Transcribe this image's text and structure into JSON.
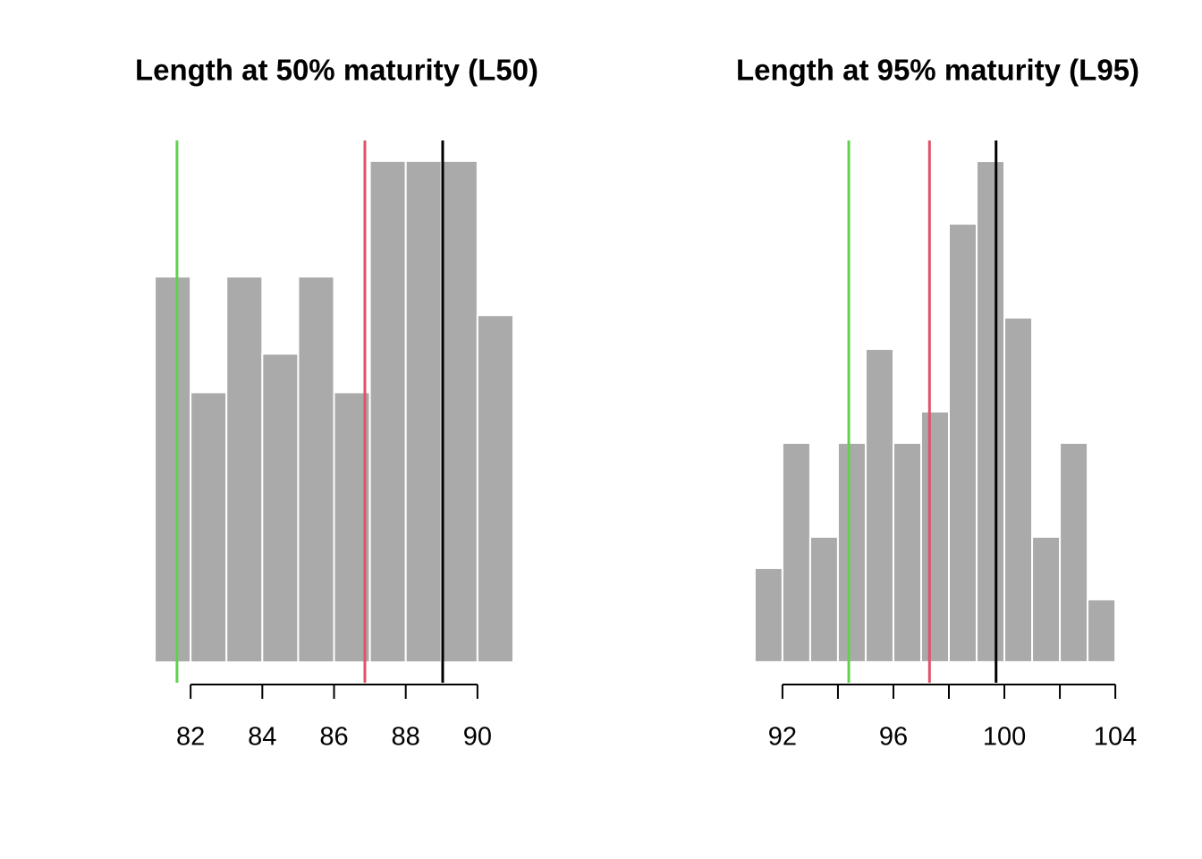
{
  "chart_data": [
    {
      "type": "histogram",
      "title": "Length at 50% maturity (L50)",
      "bins": [
        81,
        82,
        83,
        84,
        85,
        86,
        87,
        88,
        89,
        90,
        91
      ],
      "values": [
        10,
        7,
        10,
        8,
        10,
        7,
        13,
        13,
        13,
        9
      ],
      "color": "#aaaaaa",
      "xlim": [
        80.6,
        91.4
      ],
      "ylim": [
        -0.53,
        13.53
      ],
      "xticks": [
        82,
        84,
        86,
        88,
        90
      ],
      "vlines": [
        {
          "value": 81.62,
          "color": "#61D04F"
        },
        {
          "value": 86.86,
          "color": "#DF536B"
        },
        {
          "value": 89.03,
          "color": "#000000"
        }
      ]
    },
    {
      "type": "histogram",
      "title": "Length at 95% maturity (L95)",
      "bins": [
        91,
        92,
        93,
        94,
        95,
        96,
        97,
        98,
        99,
        100,
        101,
        102,
        103,
        104
      ],
      "values": [
        3,
        7,
        4,
        7,
        10,
        7,
        8,
        14,
        16,
        11,
        4,
        7,
        2
      ],
      "color": "#aaaaaa",
      "xlim": [
        90.52,
        104.48
      ],
      "ylim": [
        -0.66,
        16.66
      ],
      "xticks": [
        92,
        96,
        100,
        104
      ],
      "xticks_unlabeled": [
        94,
        98,
        102
      ],
      "vlines": [
        {
          "value": 94.39,
          "color": "#61D04F"
        },
        {
          "value": 97.3,
          "color": "#DF536B"
        },
        {
          "value": 99.7,
          "color": "#000000"
        }
      ]
    }
  ]
}
